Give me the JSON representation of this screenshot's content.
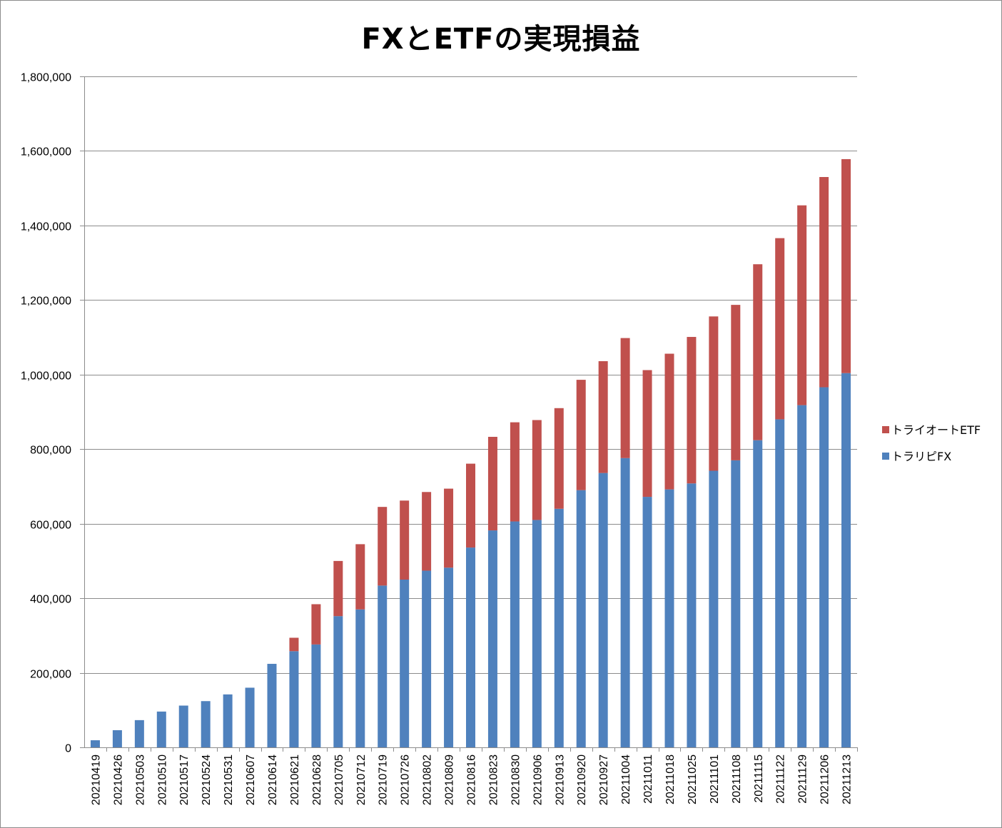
{
  "chart_data": {
    "type": "bar",
    "stacked": true,
    "title": "FXとETFの実現損益",
    "xlabel": "",
    "ylabel": "",
    "ylim": [
      0,
      1800000
    ],
    "yticks": [
      0,
      200000,
      400000,
      600000,
      800000,
      1000000,
      1200000,
      1400000,
      1600000,
      1800000
    ],
    "ytick_labels": [
      "0",
      "200,000",
      "400,000",
      "600,000",
      "800,000",
      "1,000,000",
      "1,200,000",
      "1,400,000",
      "1,600,000",
      "1,800,000"
    ],
    "grid": true,
    "legend_position": "right",
    "categories": [
      "20210419",
      "20210426",
      "20210503",
      "20210510",
      "20210517",
      "20210524",
      "20210531",
      "20210607",
      "20210614",
      "20210621",
      "20210628",
      "20210705",
      "20210712",
      "20210719",
      "20210726",
      "20210802",
      "20210809",
      "20210816",
      "20210823",
      "20210830",
      "20210906",
      "20210913",
      "20210920",
      "20210927",
      "20211004",
      "20211011",
      "20211018",
      "20211025",
      "20211101",
      "20211108",
      "20211115",
      "20211122",
      "20211129",
      "20211206",
      "20211213"
    ],
    "series": [
      {
        "name": "トラリピFX",
        "color": "#4f81bd",
        "values": [
          19000,
          46000,
          73000,
          96000,
          112000,
          124000,
          142000,
          160000,
          224000,
          258000,
          276000,
          352000,
          370000,
          434000,
          450000,
          474000,
          482000,
          536000,
          582000,
          606000,
          610000,
          640000,
          690000,
          736000,
          776000,
          672000,
          692000,
          708000,
          742000,
          770000,
          824000,
          880000,
          918000,
          966000,
          1004000
        ]
      },
      {
        "name": "トライオートETF",
        "color": "#c0504d",
        "values": [
          0,
          0,
          0,
          0,
          0,
          0,
          0,
          0,
          0,
          36000,
          108000,
          148000,
          175000,
          211000,
          212000,
          211000,
          212000,
          225000,
          251000,
          266000,
          268000,
          270000,
          296000,
          300000,
          322000,
          340000,
          364000,
          393000,
          414000,
          417000,
          472000,
          486000,
          536000,
          564000,
          574000
        ]
      }
    ]
  }
}
